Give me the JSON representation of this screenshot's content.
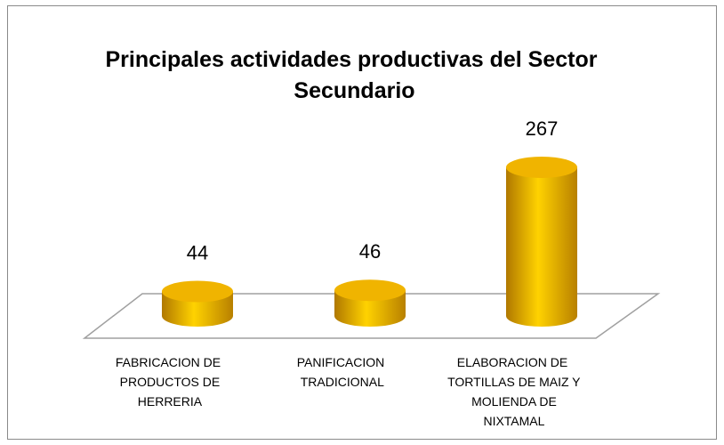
{
  "chart_data": {
    "type": "bar3d",
    "title": "Principales actividades productivas  del Sector Secundario",
    "categories": [
      "FABRICACION DE PRODUCTOS DE HERRERIA",
      "PANIFICACION TRADICIONAL",
      "ELABORACION DE TORTILLAS DE MAIZ Y MOLIENDA DE NIXTAMAL"
    ],
    "values": [
      44,
      46,
      267
    ],
    "color": "#f0b400"
  }
}
